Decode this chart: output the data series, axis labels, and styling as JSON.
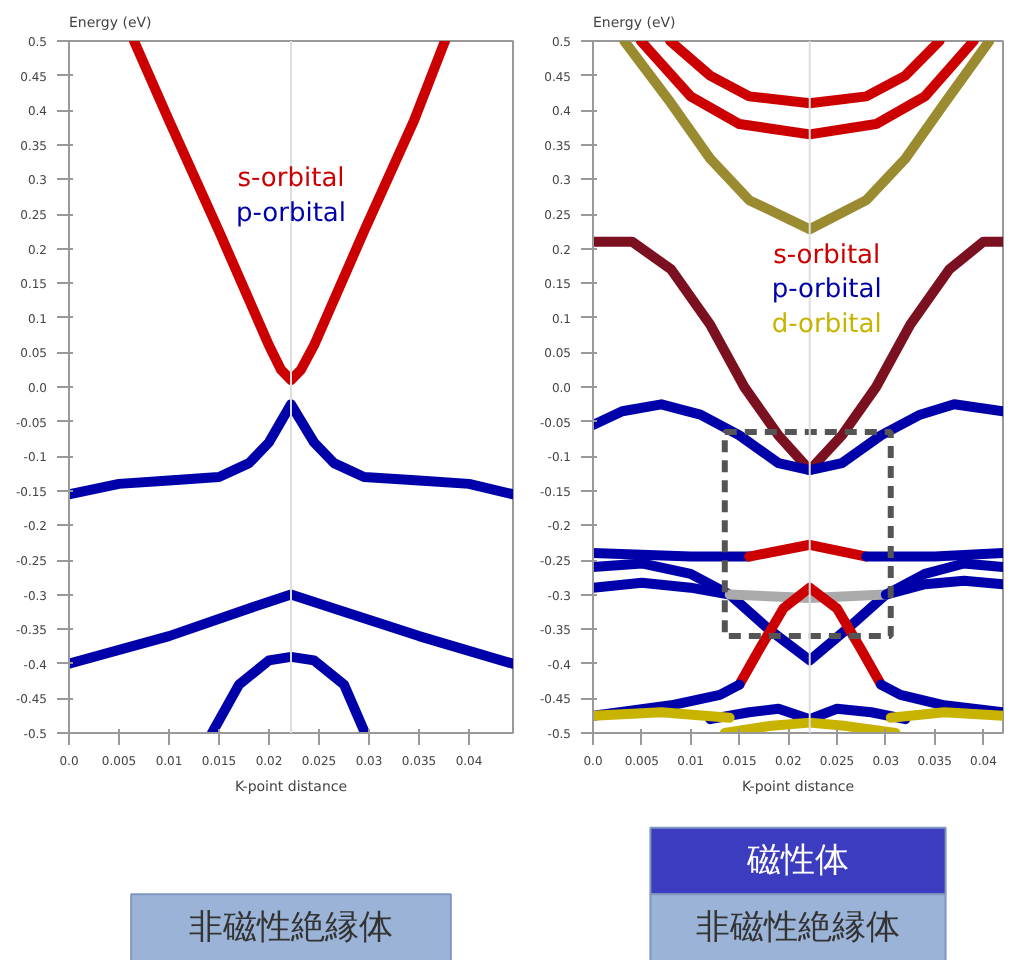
{
  "chart_data": [
    {
      "type": "line",
      "ylabel": "Energy (eV)",
      "xlabel": "K-point distance",
      "xlim": [
        0,
        0.0444
      ],
      "ylim": [
        -0.5,
        0.5
      ],
      "xticks": [
        {
          "value": 0,
          "label": "0.0"
        },
        0.005,
        0.01,
        0.015,
        0.02,
        0.025,
        0.03,
        0.035,
        0.04
      ],
      "yticks": [
        0.5,
        0.45,
        0.4,
        0.35,
        0.3,
        0.25,
        0.2,
        0.15,
        0.1,
        0.05,
        {
          "value": 0,
          "label": "0.0"
        },
        -0.05,
        -0.1,
        -0.15,
        -0.2,
        -0.25,
        -0.3,
        -0.35,
        -0.4,
        -0.45,
        -0.5
      ],
      "grid": false,
      "legend": "top",
      "ref_lines": [
        {
          "axis": "x",
          "value": 0.0222,
          "label": null,
          "color": "#dddddd"
        }
      ],
      "annotations": [
        "非磁性絶縁体"
      ],
      "series": [
        {
          "name": "s-orbital",
          "color": "#cc0000",
          "x": [
            0.0065,
            0.01,
            0.015,
            0.02,
            0.0212,
            0.0222,
            0.0232,
            0.0245,
            0.0295,
            0.0345,
            0.0376
          ],
          "values": [
            0.5,
            0.385,
            0.225,
            0.06,
            0.025,
            0.01,
            0.025,
            0.06,
            0.225,
            0.385,
            0.5
          ]
        },
        {
          "name": "p-orbital",
          "color": "#0000aa",
          "x": [
            0,
            0.005,
            0.01,
            0.015,
            0.018,
            0.02,
            0.0222,
            0.0245,
            0.0265,
            0.0295,
            0.035,
            0.04,
            0.0444
          ],
          "values": [
            -0.155,
            -0.14,
            -0.135,
            -0.13,
            -0.11,
            -0.08,
            -0.025,
            -0.08,
            -0.11,
            -0.13,
            -0.135,
            -0.14,
            -0.155
          ]
        },
        {
          "color": "#0000aa",
          "x": [
            0,
            0.01,
            0.018,
            0.0222,
            0.0265,
            0.035,
            0.0444
          ],
          "values": [
            -0.4,
            -0.36,
            -0.32,
            -0.3,
            -0.32,
            -0.36,
            -0.4
          ]
        },
        {
          "color": "#0000aa",
          "x": [
            0.0143,
            0.017,
            0.02,
            0.0222,
            0.0245,
            0.0275,
            0.0296
          ],
          "values": [
            -0.5,
            -0.43,
            -0.395,
            -0.39,
            -0.395,
            -0.43,
            -0.5
          ]
        }
      ]
    },
    {
      "type": "line",
      "ylabel": "Energy (eV)",
      "xlabel": "K-point distance",
      "xlim": [
        0,
        0.042
      ],
      "ylim": [
        -0.5,
        0.5
      ],
      "xticks": [
        {
          "value": 0,
          "label": "0.0"
        },
        0.005,
        0.01,
        0.015,
        0.02,
        0.025,
        0.03,
        0.035,
        0.04
      ],
      "yticks": [
        0.5,
        0.45,
        0.4,
        0.35,
        0.3,
        0.25,
        0.2,
        0.15,
        0.1,
        0.05,
        {
          "value": 0,
          "label": "0.0"
        },
        -0.05,
        -0.1,
        -0.15,
        -0.2,
        -0.25,
        -0.3,
        -0.35,
        -0.4,
        -0.45,
        -0.5
      ],
      "grid": false,
      "legend": "center",
      "ref_lines": [
        {
          "axis": "x",
          "value": 0.0222,
          "label": null,
          "color": "#dddddd"
        }
      ],
      "annotations": [
        "磁性体",
        "非磁性絶縁体"
      ],
      "series": [
        {
          "name": "s-orbital",
          "color": "#cc0000",
          "x": [
            0.0079,
            0.012,
            0.016,
            0.0222,
            0.028,
            0.032,
            0.0355
          ],
          "values": [
            0.5,
            0.45,
            0.42,
            0.41,
            0.42,
            0.45,
            0.5
          ]
        },
        {
          "color": "#cc0000",
          "x": [
            0.0049,
            0.01,
            0.015,
            0.0222,
            0.029,
            0.034,
            0.039
          ],
          "values": [
            0.5,
            0.42,
            0.38,
            0.365,
            0.38,
            0.42,
            0.5
          ]
        },
        {
          "color": "#9a8a30",
          "x": [
            0.0032,
            0.008,
            0.012,
            0.016,
            0.0222,
            0.028,
            0.032,
            0.036,
            0.0406
          ],
          "values": [
            0.5,
            0.41,
            0.33,
            0.27,
            0.228,
            0.27,
            0.33,
            0.41,
            0.5
          ]
        },
        {
          "color": "#7a1020",
          "x": [
            0,
            0.004,
            0.008,
            0.012,
            0.0155,
            0.019,
            0.0222,
            0.0255,
            0.029,
            0.0325,
            0.0365,
            0.04,
            0.042
          ],
          "values": [
            0.21,
            0.21,
            0.17,
            0.09,
            0.0,
            -0.07,
            -0.12,
            -0.07,
            0.0,
            0.09,
            0.17,
            0.21,
            0.21
          ]
        },
        {
          "name": "p-orbital",
          "color": "#0000aa",
          "x": [
            0,
            0.003,
            0.007,
            0.011,
            0.015,
            0.019,
            0.0222,
            0.0255,
            0.0295,
            0.0335,
            0.037,
            0.042
          ],
          "values": [
            -0.055,
            -0.035,
            -0.025,
            -0.04,
            -0.07,
            -0.11,
            -0.12,
            -0.11,
            -0.07,
            -0.04,
            -0.025,
            -0.035
          ]
        },
        {
          "color": "#0000aa",
          "x": [
            0,
            0.01,
            0.016
          ],
          "values": [
            -0.24,
            -0.245,
            -0.245
          ]
        },
        {
          "color": "#cc0000",
          "x": [
            0.016,
            0.0222,
            0.028
          ],
          "values": [
            -0.245,
            -0.228,
            -0.245
          ]
        },
        {
          "color": "#0000aa",
          "x": [
            0.028,
            0.035,
            0.042
          ],
          "values": [
            -0.245,
            -0.245,
            -0.24
          ]
        },
        {
          "color": "#0000aa",
          "x": [
            0,
            0.005,
            0.01,
            0.014,
            0.018,
            0.0222,
            0.026,
            0.03,
            0.034,
            0.038,
            0.042
          ],
          "values": [
            -0.26,
            -0.255,
            -0.27,
            -0.3,
            -0.35,
            -0.395,
            -0.35,
            -0.3,
            -0.27,
            -0.255,
            -0.26
          ]
        },
        {
          "color": "#0000aa",
          "x": [
            0,
            0.005,
            0.01,
            0.014
          ],
          "values": [
            -0.29,
            -0.283,
            -0.29,
            -0.3
          ]
        },
        {
          "color": "#aaaaaa",
          "x": [
            0.014,
            0.0222,
            0.03
          ],
          "values": [
            -0.3,
            -0.305,
            -0.3
          ]
        },
        {
          "color": "#0000aa",
          "x": [
            0.03,
            0.034,
            0.038,
            0.042
          ],
          "values": [
            -0.3,
            -0.285,
            -0.28,
            -0.285
          ]
        },
        {
          "color": "#cc0000",
          "x": [
            0.015,
            0.017,
            0.0195,
            0.0222,
            0.025,
            0.0275,
            0.0295
          ],
          "values": [
            -0.43,
            -0.38,
            -0.32,
            -0.29,
            -0.32,
            -0.38,
            -0.43
          ]
        },
        {
          "color": "#0000aa",
          "x": [
            0,
            0.008,
            0.013,
            0.015
          ],
          "values": [
            -0.475,
            -0.46,
            -0.445,
            -0.43
          ]
        },
        {
          "color": "#0000aa",
          "x": [
            0.0295,
            0.0315,
            0.036,
            0.042
          ],
          "values": [
            -0.43,
            -0.445,
            -0.46,
            -0.47
          ]
        },
        {
          "color": "#0000aa",
          "x": [
            0.012,
            0.016,
            0.019,
            0.0222,
            0.025,
            0.0285,
            0.032
          ],
          "values": [
            -0.48,
            -0.47,
            -0.465,
            -0.48,
            -0.465,
            -0.47,
            -0.48
          ]
        },
        {
          "name": "d-orbital",
          "color": "#c8b400",
          "x": [
            0,
            0.007,
            0.014
          ],
          "values": [
            -0.475,
            -0.47,
            -0.478
          ]
        },
        {
          "color": "#c8b400",
          "x": [
            0.0305,
            0.036,
            0.042
          ],
          "values": [
            -0.478,
            -0.47,
            -0.475
          ]
        },
        {
          "color": "#c8b400",
          "x": [
            0.0135,
            0.018,
            0.0222,
            0.026,
            0.031
          ],
          "values": [
            -0.5,
            -0.49,
            -0.485,
            -0.49,
            -0.5
          ]
        }
      ]
    }
  ]
}
